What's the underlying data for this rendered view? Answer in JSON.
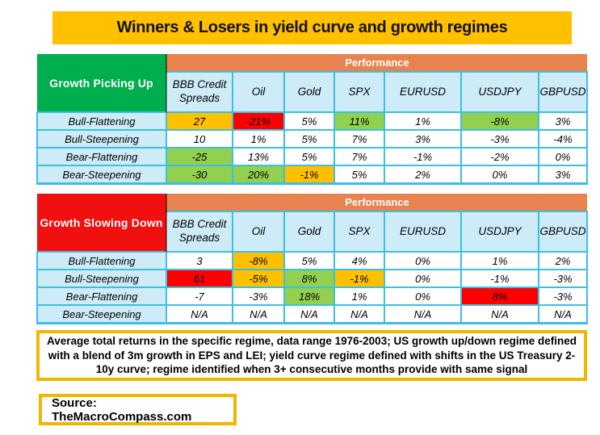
{
  "title": "Winners & Losers in yield curve and growth regimes",
  "performance_label": "Performance",
  "columns": [
    "BBB Credit Spreads",
    "Oil",
    "Gold",
    "SPX",
    "EURUSD",
    "USDJPY",
    "GBPUSD"
  ],
  "tables": [
    {
      "regime": "Growth Picking Up",
      "header_bg": "#00AE4E",
      "rows": [
        {
          "label": "Bull-Flattening",
          "cells": [
            {
              "text": "27",
              "bg": "gold"
            },
            {
              "text": "-21%",
              "bg": "red"
            },
            {
              "text": "5%",
              "bg": "white"
            },
            {
              "text": "11%",
              "bg": "green"
            },
            {
              "text": "1%",
              "bg": "white"
            },
            {
              "text": "-8%",
              "bg": "green"
            },
            {
              "text": "3%",
              "bg": "white"
            }
          ]
        },
        {
          "label": "Bull-Steepening",
          "cells": [
            {
              "text": "10",
              "bg": "white"
            },
            {
              "text": "1%",
              "bg": "white"
            },
            {
              "text": "5%",
              "bg": "white"
            },
            {
              "text": "7%",
              "bg": "white"
            },
            {
              "text": "3%",
              "bg": "white"
            },
            {
              "text": "-3%",
              "bg": "white"
            },
            {
              "text": "-4%",
              "bg": "white"
            }
          ]
        },
        {
          "label": "Bear-Flattening",
          "cells": [
            {
              "text": "-25",
              "bg": "green"
            },
            {
              "text": "13%",
              "bg": "white"
            },
            {
              "text": "5%",
              "bg": "white"
            },
            {
              "text": "7%",
              "bg": "white"
            },
            {
              "text": "-1%",
              "bg": "white"
            },
            {
              "text": "-2%",
              "bg": "white"
            },
            {
              "text": "0%",
              "bg": "white"
            }
          ]
        },
        {
          "label": "Bear-Steepening",
          "cells": [
            {
              "text": "-30",
              "bg": "green"
            },
            {
              "text": "20%",
              "bg": "green"
            },
            {
              "text": "-1%",
              "bg": "gold"
            },
            {
              "text": "5%",
              "bg": "white"
            },
            {
              "text": "2%",
              "bg": "white"
            },
            {
              "text": "0%",
              "bg": "white"
            },
            {
              "text": "3%",
              "bg": "white"
            }
          ]
        }
      ]
    },
    {
      "regime": "Growth Slowing Down",
      "header_bg": "#F01010",
      "rows": [
        {
          "label": "Bull-Flattening",
          "cells": [
            {
              "text": "3",
              "bg": "white"
            },
            {
              "text": "-8%",
              "bg": "gold"
            },
            {
              "text": "5%",
              "bg": "white"
            },
            {
              "text": "4%",
              "bg": "white"
            },
            {
              "text": "0%",
              "bg": "white"
            },
            {
              "text": "1%",
              "bg": "white"
            },
            {
              "text": "2%",
              "bg": "white"
            }
          ]
        },
        {
          "label": "Bull-Steepening",
          "cells": [
            {
              "text": "61",
              "bg": "red"
            },
            {
              "text": "-5%",
              "bg": "gold"
            },
            {
              "text": "8%",
              "bg": "green"
            },
            {
              "text": "-1%",
              "bg": "gold"
            },
            {
              "text": "0%",
              "bg": "white"
            },
            {
              "text": "-1%",
              "bg": "white"
            },
            {
              "text": "-3%",
              "bg": "white"
            }
          ]
        },
        {
          "label": "Bear-Flattening",
          "cells": [
            {
              "text": "-7",
              "bg": "white"
            },
            {
              "text": "-3%",
              "bg": "white"
            },
            {
              "text": "18%",
              "bg": "green"
            },
            {
              "text": "1%",
              "bg": "white"
            },
            {
              "text": "0%",
              "bg": "white"
            },
            {
              "text": "8%",
              "bg": "red"
            },
            {
              "text": "-3%",
              "bg": "white"
            }
          ]
        },
        {
          "label": "Bear-Steepening",
          "cells": [
            {
              "text": "N/A",
              "bg": "white"
            },
            {
              "text": "N/A",
              "bg": "white"
            },
            {
              "text": "N/A",
              "bg": "white"
            },
            {
              "text": "N/A",
              "bg": "white"
            },
            {
              "text": "N/A",
              "bg": "white"
            },
            {
              "text": "N/A",
              "bg": "white"
            },
            {
              "text": "N/A",
              "bg": "white"
            }
          ]
        }
      ]
    }
  ],
  "note": "Average total returns in the specific regime, data range 1976-2003; US growth up/down regime defined with a blend of 3m growth in EPS and LEI; yield curve regime defined with shifts in the US Treasury 2-10y curve; regime identified when 3+ consecutive months provide with same signal",
  "source": "Source: TheMacroCompass.com",
  "colors": {
    "title_bg": "#FFC000",
    "performance_bg": "#E8824E",
    "header_cell_bg": "#CEEBF8",
    "border": "#3BBFE2",
    "box_border": "#EFB700",
    "gold": "#FFC000",
    "green": "#92D050",
    "red": "#FF0000",
    "white": "#FFFFFF"
  },
  "chart_data": [
    {
      "type": "table",
      "title": "Growth Picking Up",
      "subtitle": "Performance",
      "columns": [
        "BBB Credit Spreads",
        "Oil",
        "Gold",
        "SPX",
        "EURUSD",
        "USDJPY",
        "GBPUSD"
      ],
      "rows": [
        {
          "label": "Bull-Flattening",
          "values": [
            "27",
            "-21%",
            "5%",
            "11%",
            "1%",
            "-8%",
            "3%"
          ]
        },
        {
          "label": "Bull-Steepening",
          "values": [
            "10",
            "1%",
            "5%",
            "7%",
            "3%",
            "-3%",
            "-4%"
          ]
        },
        {
          "label": "Bear-Flattening",
          "values": [
            "-25",
            "13%",
            "5%",
            "7%",
            "-1%",
            "-2%",
            "0%"
          ]
        },
        {
          "label": "Bear-Steepening",
          "values": [
            "-30",
            "20%",
            "-1%",
            "5%",
            "2%",
            "0%",
            "3%"
          ]
        }
      ]
    },
    {
      "type": "table",
      "title": "Growth Slowing Down",
      "subtitle": "Performance",
      "columns": [
        "BBB Credit Spreads",
        "Oil",
        "Gold",
        "SPX",
        "EURUSD",
        "USDJPY",
        "GBPUSD"
      ],
      "rows": [
        {
          "label": "Bull-Flattening",
          "values": [
            "3",
            "-8%",
            "5%",
            "4%",
            "0%",
            "1%",
            "2%"
          ]
        },
        {
          "label": "Bull-Steepening",
          "values": [
            "61",
            "-5%",
            "8%",
            "-1%",
            "0%",
            "-1%",
            "-3%"
          ]
        },
        {
          "label": "Bear-Flattening",
          "values": [
            "-7",
            "-3%",
            "18%",
            "1%",
            "0%",
            "8%",
            "-3%"
          ]
        },
        {
          "label": "Bear-Steepening",
          "values": [
            "N/A",
            "N/A",
            "N/A",
            "N/A",
            "N/A",
            "N/A",
            "N/A"
          ]
        }
      ]
    }
  ]
}
